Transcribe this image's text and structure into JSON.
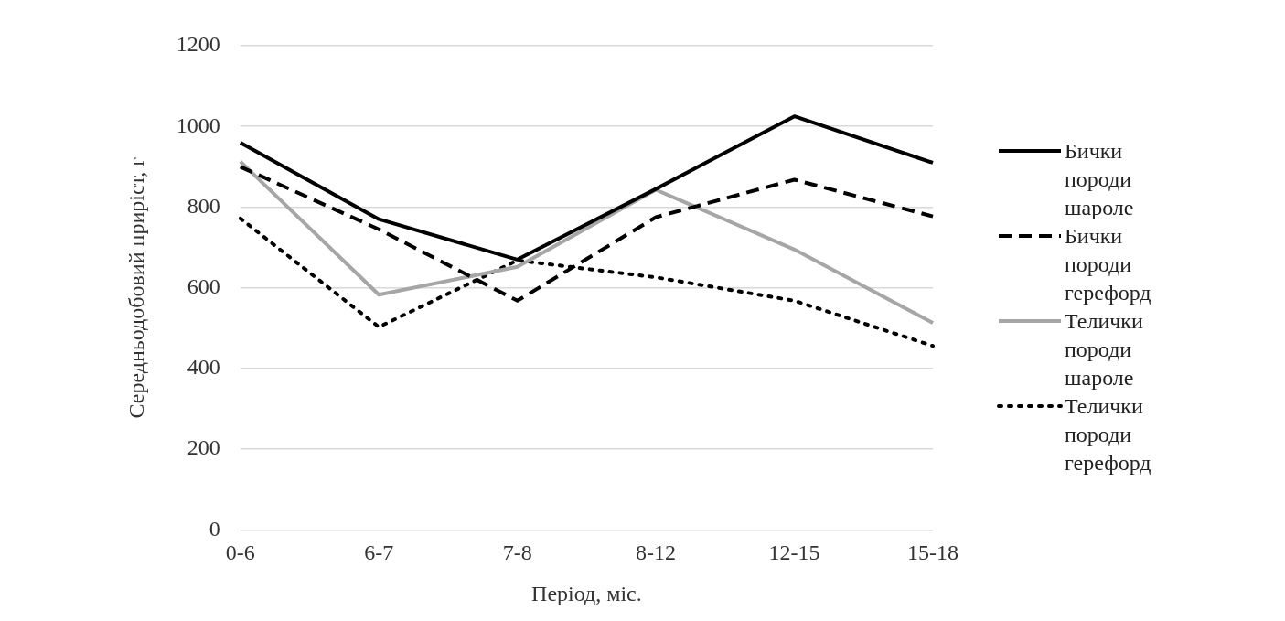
{
  "chart_data": {
    "type": "line",
    "xlabel": "Період, міс.",
    "ylabel": "Середньодобовий приріст, г",
    "categories": [
      "0-6",
      "6-7",
      "7-8",
      "8-12",
      "12-15",
      "15-18"
    ],
    "series": [
      {
        "name": "Бички породи шароле",
        "color": "#000000",
        "line_style": "solid",
        "values": [
          960,
          770,
          670,
          845,
          1025,
          910
        ]
      },
      {
        "name": "Бички породи герефорд",
        "color": "#000000",
        "line_style": "dashed",
        "values": [
          900,
          745,
          568,
          775,
          868,
          777
        ]
      },
      {
        "name": "Телички породи шароле",
        "color": "#a6a6a6",
        "line_style": "solid",
        "values": [
          913,
          583,
          652,
          843,
          695,
          513
        ]
      },
      {
        "name": "Телички породи герефорд",
        "color": "#000000",
        "line_style": "dotted",
        "values": [
          772,
          503,
          668,
          626,
          568,
          456
        ]
      }
    ],
    "ylim": [
      0,
      1200
    ],
    "yticks": [
      0,
      200,
      400,
      600,
      800,
      1000,
      1200
    ],
    "grid": "y",
    "legend": "right",
    "marker": "none"
  }
}
